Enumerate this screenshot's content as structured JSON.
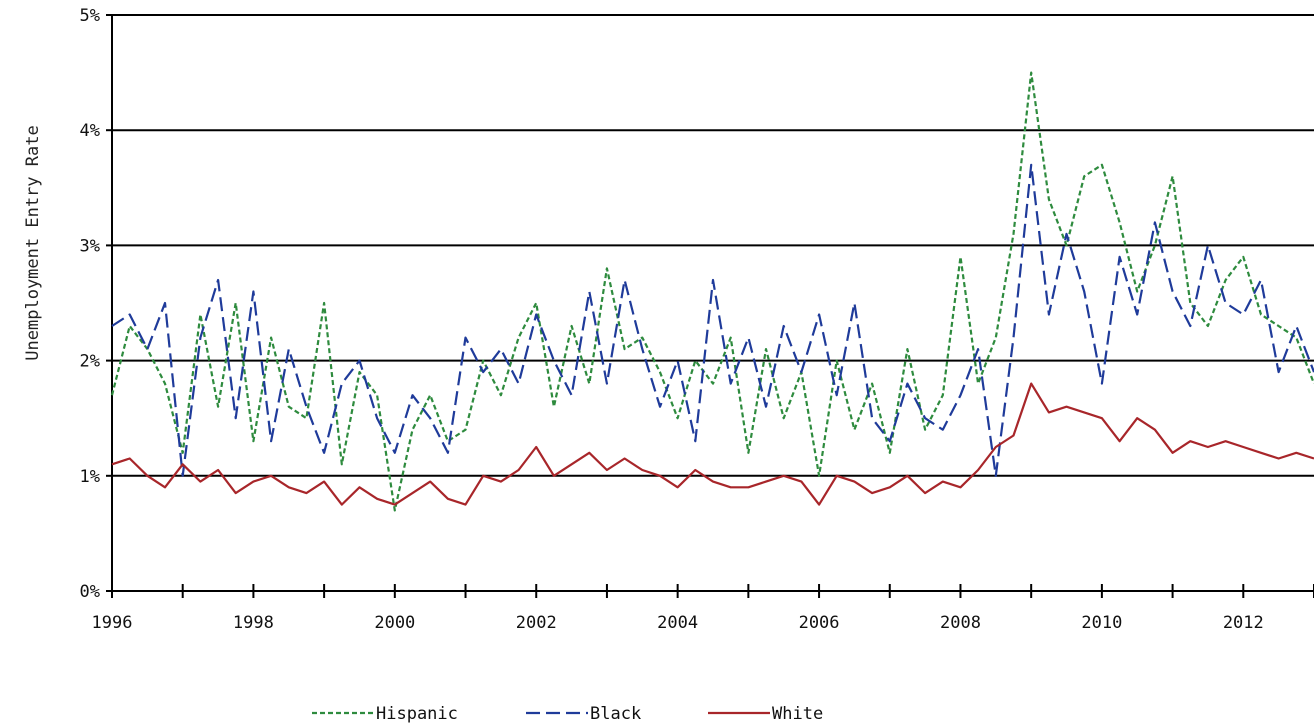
{
  "chart_data": {
    "type": "line",
    "title": "",
    "xlabel": "",
    "ylabel": "Unemployment Entry Rate",
    "xlim": [
      1996,
      2013
    ],
    "ylim": [
      0,
      5
    ],
    "yticks": [
      0,
      1,
      2,
      3,
      4,
      5
    ],
    "ytick_labels": [
      "0%",
      "1%",
      "2%",
      "3%",
      "4%",
      "5%"
    ],
    "xticks": [
      1996,
      1998,
      2000,
      2002,
      2004,
      2006,
      2008,
      2010,
      2012
    ],
    "xtick_labels": [
      "1996",
      "1998",
      "2000",
      "2002",
      "2004",
      "2006",
      "2008",
      "2010",
      "2012"
    ],
    "grid": "horizontal",
    "legend_position": "bottom",
    "series": [
      {
        "name": "Hispanic",
        "color": "#2e8b3e",
        "dash": "short-dash",
        "x": [
          1996.0,
          1996.25,
          1996.5,
          1996.75,
          1997.0,
          1997.25,
          1997.5,
          1997.75,
          1998.0,
          1998.25,
          1998.5,
          1998.75,
          1999.0,
          1999.25,
          1999.5,
          1999.75,
          2000.0,
          2000.25,
          2000.5,
          2000.75,
          2001.0,
          2001.25,
          2001.5,
          2001.75,
          2002.0,
          2002.25,
          2002.5,
          2002.75,
          2003.0,
          2003.25,
          2003.5,
          2003.75,
          2004.0,
          2004.25,
          2004.5,
          2004.75,
          2005.0,
          2005.25,
          2005.5,
          2005.75,
          2006.0,
          2006.25,
          2006.5,
          2006.75,
          2007.0,
          2007.25,
          2007.5,
          2007.75,
          2008.0,
          2008.25,
          2008.5,
          2008.75,
          2009.0,
          2009.25,
          2009.5,
          2009.75,
          2010.0,
          2010.25,
          2010.5,
          2010.75,
          2011.0,
          2011.25,
          2011.5,
          2011.75,
          2012.0,
          2012.25,
          2012.5,
          2012.75,
          2013.0
        ],
        "values": [
          1.7,
          2.3,
          2.1,
          1.8,
          1.2,
          2.4,
          1.6,
          2.5,
          1.3,
          2.2,
          1.6,
          1.5,
          2.5,
          1.1,
          1.9,
          1.7,
          0.7,
          1.4,
          1.7,
          1.3,
          1.4,
          2.0,
          1.7,
          2.2,
          2.5,
          1.6,
          2.3,
          1.8,
          2.8,
          2.1,
          2.2,
          1.9,
          1.5,
          2.0,
          1.8,
          2.2,
          1.2,
          2.1,
          1.5,
          1.9,
          1.0,
          2.0,
          1.4,
          1.8,
          1.2,
          2.1,
          1.4,
          1.7,
          2.9,
          1.8,
          2.2,
          3.1,
          4.5,
          3.4,
          3.0,
          3.6,
          3.7,
          3.2,
          2.6,
          3.0,
          3.6,
          2.5,
          2.3,
          2.7,
          2.9,
          2.4,
          2.3,
          2.2,
          1.8
        ]
      },
      {
        "name": "Black",
        "color": "#1f3b9a",
        "dash": "long-dash",
        "x": [
          1996.0,
          1996.25,
          1996.5,
          1996.75,
          1997.0,
          1997.25,
          1997.5,
          1997.75,
          1998.0,
          1998.25,
          1998.5,
          1998.75,
          1999.0,
          1999.25,
          1999.5,
          1999.75,
          2000.0,
          2000.25,
          2000.5,
          2000.75,
          2001.0,
          2001.25,
          2001.5,
          2001.75,
          2002.0,
          2002.25,
          2002.5,
          2002.75,
          2003.0,
          2003.25,
          2003.5,
          2003.75,
          2004.0,
          2004.25,
          2004.5,
          2004.75,
          2005.0,
          2005.25,
          2005.5,
          2005.75,
          2006.0,
          2006.25,
          2006.5,
          2006.75,
          2007.0,
          2007.25,
          2007.5,
          2007.75,
          2008.0,
          2008.25,
          2008.5,
          2008.75,
          2009.0,
          2009.25,
          2009.5,
          2009.75,
          2010.0,
          2010.25,
          2010.5,
          2010.75,
          2011.0,
          2011.25,
          2011.5,
          2011.75,
          2012.0,
          2012.25,
          2012.5,
          2012.75,
          2013.0
        ],
        "values": [
          2.3,
          2.4,
          2.1,
          2.5,
          1.0,
          2.2,
          2.7,
          1.5,
          2.6,
          1.3,
          2.1,
          1.6,
          1.2,
          1.8,
          2.0,
          1.5,
          1.2,
          1.7,
          1.5,
          1.2,
          2.2,
          1.9,
          2.1,
          1.8,
          2.4,
          2.0,
          1.7,
          2.6,
          1.8,
          2.7,
          2.1,
          1.6,
          2.0,
          1.3,
          2.7,
          1.8,
          2.2,
          1.6,
          2.3,
          1.9,
          2.4,
          1.7,
          2.5,
          1.5,
          1.3,
          1.8,
          1.5,
          1.4,
          1.7,
          2.1,
          1.0,
          2.2,
          3.7,
          2.4,
          3.1,
          2.6,
          1.8,
          2.9,
          2.4,
          3.2,
          2.6,
          2.3,
          3.0,
          2.5,
          2.4,
          2.7,
          1.9,
          2.3,
          1.9
        ]
      },
      {
        "name": "White",
        "color": "#a8262a",
        "dash": "solid",
        "x": [
          1996.0,
          1996.25,
          1996.5,
          1996.75,
          1997.0,
          1997.25,
          1997.5,
          1997.75,
          1998.0,
          1998.25,
          1998.5,
          1998.75,
          1999.0,
          1999.25,
          1999.5,
          1999.75,
          2000.0,
          2000.25,
          2000.5,
          2000.75,
          2001.0,
          2001.25,
          2001.5,
          2001.75,
          2002.0,
          2002.25,
          2002.5,
          2002.75,
          2003.0,
          2003.25,
          2003.5,
          2003.75,
          2004.0,
          2004.25,
          2004.5,
          2004.75,
          2005.0,
          2005.25,
          2005.5,
          2005.75,
          2006.0,
          2006.25,
          2006.5,
          2006.75,
          2007.0,
          2007.25,
          2007.5,
          2007.75,
          2008.0,
          2008.25,
          2008.5,
          2008.75,
          2009.0,
          2009.25,
          2009.5,
          2009.75,
          2010.0,
          2010.25,
          2010.5,
          2010.75,
          2011.0,
          2011.25,
          2011.5,
          2011.75,
          2012.0,
          2012.25,
          2012.5,
          2012.75,
          2013.0
        ],
        "values": [
          1.1,
          1.15,
          1.0,
          0.9,
          1.1,
          0.95,
          1.05,
          0.85,
          0.95,
          1.0,
          0.9,
          0.85,
          0.95,
          0.75,
          0.9,
          0.8,
          0.75,
          0.85,
          0.95,
          0.8,
          0.75,
          1.0,
          0.95,
          1.05,
          1.25,
          1.0,
          1.1,
          1.2,
          1.05,
          1.15,
          1.05,
          1.0,
          0.9,
          1.05,
          0.95,
          0.9,
          0.9,
          0.95,
          1.0,
          0.95,
          0.75,
          1.0,
          0.95,
          0.85,
          0.9,
          1.0,
          0.85,
          0.95,
          0.9,
          1.05,
          1.25,
          1.35,
          1.8,
          1.55,
          1.6,
          1.55,
          1.5,
          1.3,
          1.5,
          1.4,
          1.2,
          1.3,
          1.25,
          1.3,
          1.25,
          1.2,
          1.15,
          1.2,
          1.15
        ]
      }
    ]
  }
}
